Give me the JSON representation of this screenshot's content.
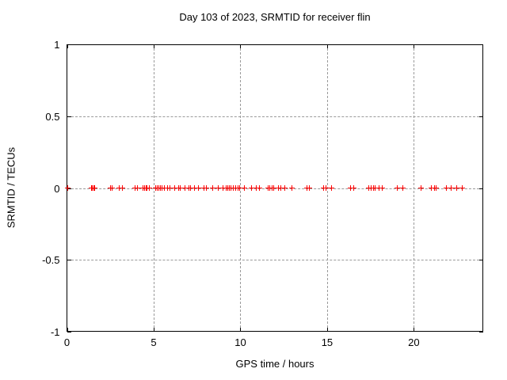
{
  "chart_data": {
    "type": "scatter",
    "title": "Day 103 of 2023, SRMTID for receiver flin",
    "xlabel": "GPS time / hours",
    "ylabel": "SRMTID / TECUs",
    "xlim": [
      0,
      24
    ],
    "ylim": [
      -1,
      1
    ],
    "xticks": [
      0,
      5,
      10,
      15,
      20
    ],
    "yticks": [
      -1,
      -0.5,
      0,
      0.5,
      1
    ],
    "grid": true,
    "legend": false,
    "marker": "plus",
    "marker_color": "#ff0000",
    "background_color": "#ffffff",
    "series": [
      {
        "name": "SRMTID",
        "x": [
          0.05,
          1.4,
          1.48,
          1.55,
          1.62,
          2.5,
          2.6,
          3.0,
          3.2,
          3.95,
          4.07,
          4.39,
          4.48,
          4.58,
          4.63,
          4.77,
          5.12,
          5.21,
          5.31,
          5.4,
          5.46,
          5.63,
          5.82,
          5.95,
          6.22,
          6.46,
          6.55,
          6.81,
          7.02,
          7.13,
          7.36,
          7.6,
          7.88,
          8.05,
          8.41,
          8.74,
          8.99,
          9.17,
          9.26,
          9.35,
          9.44,
          9.6,
          9.72,
          9.85,
          9.97,
          10.22,
          10.66,
          10.9,
          11.09,
          11.61,
          11.7,
          11.82,
          11.91,
          12.18,
          12.34,
          12.55,
          12.96,
          13.84,
          13.98,
          14.79,
          14.92,
          15.24,
          16.36,
          16.54,
          17.42,
          17.54,
          17.66,
          17.78,
          18.01,
          18.17,
          19.03,
          19.38,
          20.43,
          21.03,
          21.17,
          21.3,
          21.86,
          22.17,
          22.47,
          22.81
        ],
        "y": 0
      }
    ]
  }
}
